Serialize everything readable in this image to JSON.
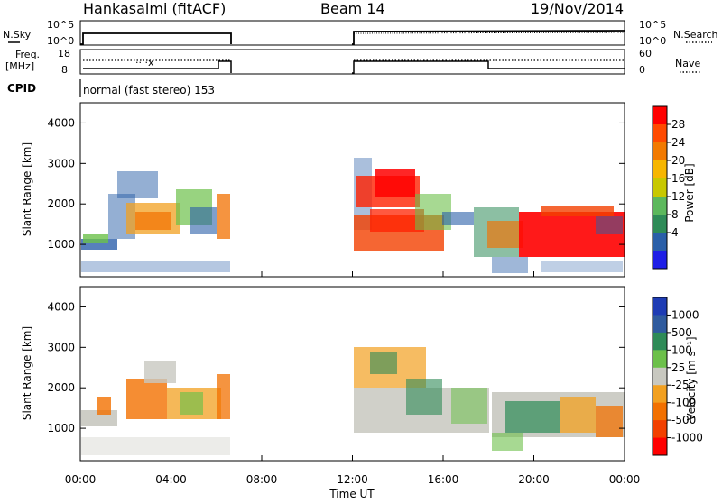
{
  "header": {
    "station": "Hankasalmi (fitACF)",
    "beam": "Beam 14",
    "date": "19/Nov/2014"
  },
  "panels": {
    "nsky_label": "N.Sky",
    "nsearch_label": "N.Search",
    "noise_ticks": [
      "10^5",
      "10^0"
    ],
    "noise_ticks_right": [
      "10^5",
      "10^0"
    ],
    "freq_label_1": "Freq.",
    "freq_label_2": "[MHz]",
    "freq_ticks": [
      "18",
      "8"
    ],
    "nave_label": "Nave",
    "nave_ticks": [
      "60",
      "0"
    ],
    "cpid_label": "CPID",
    "cpid_value": "normal (fast stereo) 153"
  },
  "axes": {
    "ylabel": "Slant Range [km]",
    "yticks": [
      "4000",
      "3000",
      "2000",
      "1000"
    ],
    "xlabel": "Time UT",
    "xticks": [
      "00:00",
      "04:00",
      "08:00",
      "12:00",
      "16:00",
      "20:00",
      "00:00"
    ]
  },
  "colorbars": {
    "power": {
      "label": "Power [dB]",
      "ticks": [
        "28",
        "24",
        "20",
        "16",
        "12",
        "8",
        "4"
      ],
      "colors": [
        "#ff0000",
        "#ff4a00",
        "#f27a00",
        "#f7b600",
        "#c8c800",
        "#5cb85c",
        "#2e8b57",
        "#2a5fa8",
        "#1e1ee6"
      ]
    },
    "velocity": {
      "label": "Velocity [m s⁻¹]",
      "ticks": [
        "1000",
        "500",
        "100",
        "25",
        "-25",
        "-100",
        "-500",
        "-1000"
      ],
      "colors": [
        "#1e3cb4",
        "#2f5b9e",
        "#2e8b57",
        "#6cc04a",
        "#c8c8c0",
        "#f2a020",
        "#f27000",
        "#f24000",
        "#ff0000"
      ]
    }
  },
  "chart_data": {
    "type": "heatmap",
    "x": [
      "00:00",
      "04:00",
      "08:00",
      "12:00",
      "16:00",
      "20:00",
      "00:00"
    ],
    "x_range_hours": [
      0,
      24
    ],
    "y_range_km": [
      200,
      4500
    ],
    "data_gap_hours": [
      6.5,
      12.0
    ],
    "panels": [
      "Power [dB]",
      "Velocity [m s⁻¹]"
    ]
  }
}
